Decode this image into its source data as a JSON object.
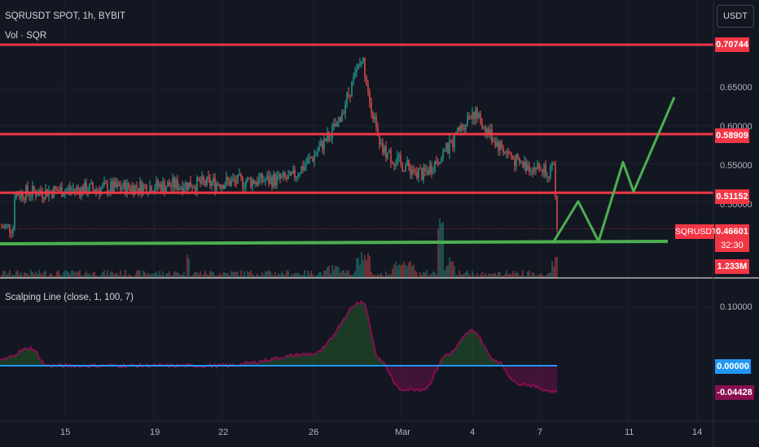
{
  "header": {
    "symbol_line": "SQRUSDT SPOT, 1h, BYBIT",
    "volume_label": "Vol · SQR"
  },
  "currency_button": "USDT",
  "price_axis": {
    "ticks": [
      "0.65000",
      "0.60000",
      "0.55000",
      "0.50000"
    ],
    "level_labels": [
      "0.70744",
      "0.58909",
      "0.51152"
    ],
    "current_symbol": "SQRUSDT",
    "current_price": "0.46601",
    "countdown": "32:30",
    "volume_value": "1.233M"
  },
  "indicator": {
    "title": "Scalping Line (close, 1, 100, 7)",
    "axis_ticks": [
      "0.10000"
    ],
    "zero_label": "0.00000",
    "value_label": "-0.04428"
  },
  "time_axis": {
    "labels": [
      "15",
      "19",
      "22",
      "26",
      "Mar",
      "4",
      "7",
      "11",
      "14"
    ]
  },
  "colors": {
    "background": "#131722",
    "resistance": "#f23645",
    "support": "#4caf50",
    "projection": "#4caf50",
    "candle_up": "#26a69a",
    "candle_down": "#ef5350",
    "zero_line": "#2196f3",
    "osc_line": "#880e4f"
  },
  "chart_data": {
    "type": "candlestick",
    "symbol": "SQRUSDT",
    "exchange": "BYBIT",
    "interval": "1h",
    "ylim": [
      0.44,
      0.73
    ],
    "horizontal_levels": {
      "resistance": [
        0.70744,
        0.58909,
        0.51152
      ],
      "support": 0.447
    },
    "last_price": 0.46601,
    "price_path_keypoints": [
      {
        "x": "Feb 12",
        "y": 0.51
      },
      {
        "x": "Feb 15",
        "y": 0.515
      },
      {
        "x": "Feb 19",
        "y": 0.52
      },
      {
        "x": "Feb 22",
        "y": 0.525
      },
      {
        "x": "Feb 25",
        "y": 0.53
      },
      {
        "x": "Feb 26",
        "y": 0.56
      },
      {
        "x": "Feb 27",
        "y": 0.6
      },
      {
        "x": "Feb 28",
        "y": 0.69
      },
      {
        "x": "Feb 29",
        "y": 0.57
      },
      {
        "x": "Mar 1",
        "y": 0.55
      },
      {
        "x": "Mar 2",
        "y": 0.535
      },
      {
        "x": "Mar 3",
        "y": 0.57
      },
      {
        "x": "Mar 4",
        "y": 0.62
      },
      {
        "x": "Mar 5",
        "y": 0.58
      },
      {
        "x": "Mar 6",
        "y": 0.55
      },
      {
        "x": "Mar 7",
        "y": 0.54
      },
      {
        "x": "Mar 7",
        "y": 0.46601
      }
    ],
    "projection_path": [
      {
        "x": "Mar 7",
        "y": 0.447
      },
      {
        "x": "Mar 8",
        "y": 0.5
      },
      {
        "x": "Mar 9",
        "y": 0.447
      },
      {
        "x": "Mar 10",
        "y": 0.552
      },
      {
        "x": "Mar 11",
        "y": 0.513
      },
      {
        "x": "Mar 13",
        "y": 0.638
      }
    ],
    "indicator": {
      "name": "Scalping Line",
      "ylim": [
        -0.06,
        0.12
      ],
      "keypoints": [
        {
          "x": "Feb 12",
          "y": 0.01
        },
        {
          "x": "Feb 13",
          "y": 0.03
        },
        {
          "x": "Feb 14",
          "y": 0.0
        },
        {
          "x": "Feb 19",
          "y": 0.0
        },
        {
          "x": "Feb 22",
          "y": 0.0
        },
        {
          "x": "Feb 26",
          "y": 0.02
        },
        {
          "x": "Feb 28",
          "y": 0.11
        },
        {
          "x": "Feb 29",
          "y": 0.01
        },
        {
          "x": "Mar 1",
          "y": -0.04
        },
        {
          "x": "Mar 2",
          "y": -0.04
        },
        {
          "x": "Mar 3",
          "y": 0.02
        },
        {
          "x": "Mar 4",
          "y": 0.06
        },
        {
          "x": "Mar 5",
          "y": 0.01
        },
        {
          "x": "Mar 6",
          "y": -0.03
        },
        {
          "x": "Mar 7",
          "y": -0.04428
        }
      ]
    }
  }
}
